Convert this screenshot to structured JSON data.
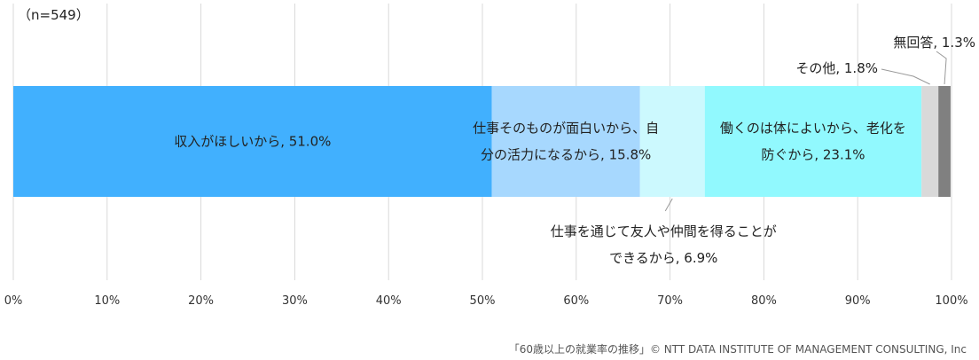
{
  "chart_data": {
    "type": "bar",
    "orientation": "horizontal-stacked-100",
    "sample_note": "（n=549）",
    "xlim": [
      0,
      100
    ],
    "x_ticks": [
      "0%",
      "10%",
      "20%",
      "30%",
      "40%",
      "50%",
      "60%",
      "70%",
      "80%",
      "90%",
      "100%"
    ],
    "grid": true,
    "segments": [
      {
        "lines": [
          "収入がほしいから, 51.0%"
        ],
        "value": 51.0,
        "color": "#41b0fe",
        "label_place": "inside"
      },
      {
        "lines": [
          "仕事そのものが面白いから、自",
          "分の活力になるから, 15.8%"
        ],
        "value": 15.8,
        "color": "#a7d8fe",
        "label_place": "inside"
      },
      {
        "lines": [
          "仕事を通じて友人や仲間を得ることが",
          "できるから, 6.9%"
        ],
        "value": 6.9,
        "color": "#ccf9fe",
        "label_place": "below"
      },
      {
        "lines": [
          "働くのは体によいから、老化を",
          "防ぐから, 23.1%"
        ],
        "value": 23.1,
        "color": "#91f9fe",
        "label_place": "inside"
      },
      {
        "lines": [
          "その他, 1.8%"
        ],
        "value": 1.8,
        "color": "#d9d9d9",
        "label_place": "above"
      },
      {
        "lines": [
          "無回答, 1.3%"
        ],
        "value": 1.3,
        "color": "#808080",
        "label_place": "above-high"
      }
    ],
    "source": "「60歳以上の就業率の推移」© NTT DATA INSTITUTE OF MANAGEMENT CONSULTING, Inc"
  }
}
